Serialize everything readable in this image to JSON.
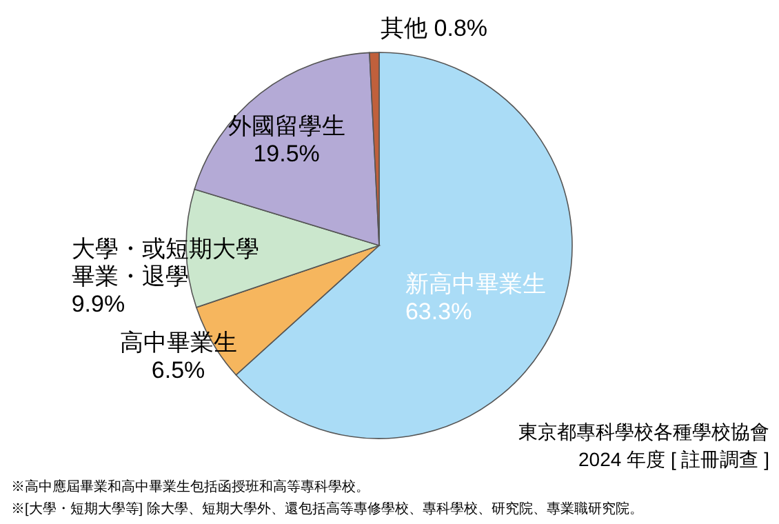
{
  "chart_data": {
    "type": "pie",
    "categories": [
      "新高中畢業生",
      "高中畢業生",
      "大學・或短期大學畢業・退學",
      "外國留學生",
      "其他"
    ],
    "values": [
      63.3,
      6.5,
      9.9,
      19.5,
      0.8
    ],
    "value_labels": [
      "63.3%",
      "6.5%",
      "9.9%",
      "19.5%",
      "0.8%"
    ],
    "colors": [
      "#aadcf6",
      "#f6b65e",
      "#cbe7cd",
      "#b4aad6",
      "#c0603c"
    ],
    "annotations": [
      "※高中應屆畢業和高中畢業生包括函授班和高等專科學校。",
      "※[大學・短期大學等] 除大學、短期大學外、還包括高等專修學校、專科學校、研究院、專業職研究院。",
      "東京都專科學校各種學校協會",
      "2024 年度 [ 註冊調查 ]"
    ]
  }
}
